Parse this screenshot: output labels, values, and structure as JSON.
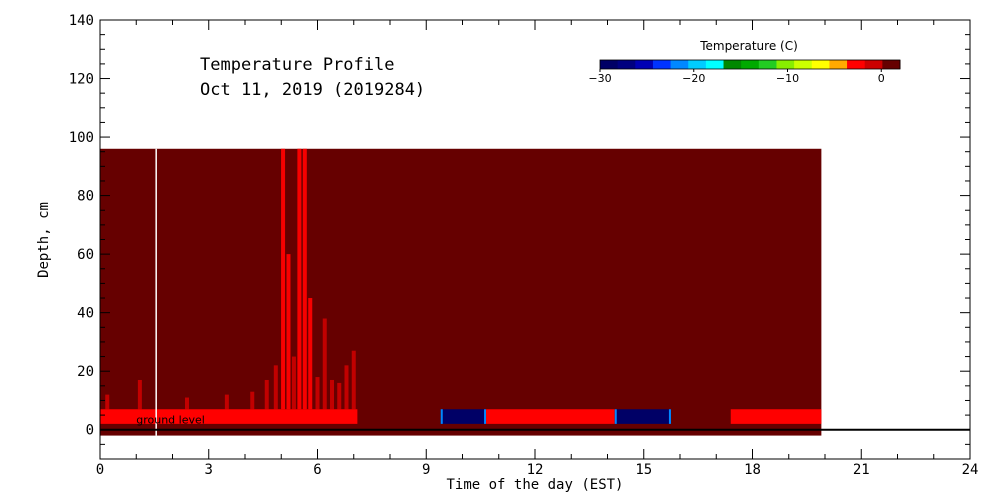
{
  "chart_data": {
    "type": "heatmap",
    "title_line1": "Temperature Profile",
    "title_line2": "Oct 11, 2019 (2019284)",
    "xlabel": "Time of the day (EST)",
    "ylabel": "Depth, cm",
    "xlim": [
      0,
      24
    ],
    "ylim": [
      -10,
      140
    ],
    "x_ticks": [
      0,
      3,
      6,
      9,
      12,
      15,
      18,
      21,
      24
    ],
    "x_tick_labels": [
      "0",
      "3",
      "6",
      "9",
      "12",
      "15",
      "18",
      "21",
      "24"
    ],
    "y_ticks": [
      0,
      20,
      40,
      60,
      80,
      100,
      120,
      140
    ],
    "y_tick_labels": [
      "0",
      "20",
      "40",
      "60",
      "80",
      "100",
      "120",
      "140"
    ],
    "ground_level_label": "ground level",
    "ground_level_depth": 0,
    "colorbar": {
      "title": "Temperature (C)",
      "range": [
        -30,
        2
      ],
      "tick_values": [
        -30,
        -20,
        -10,
        0
      ],
      "tick_labels": [
        "−30",
        "−20",
        "−10",
        "0"
      ],
      "colors": [
        "#000066",
        "#000080",
        "#0000b4",
        "#0033ff",
        "#0088ff",
        "#00ccff",
        "#00ffff",
        "#008800",
        "#00aa00",
        "#22cc22",
        "#88ee00",
        "#ccff00",
        "#ffff00",
        "#ffaa00",
        "#ff0000",
        "#cc0000",
        "#660000"
      ]
    },
    "colors": {
      "background_fill": "#660000",
      "warm_band": "#ff0000",
      "cold_band": "#000066",
      "cold_band_edge": "#0088ff",
      "marker_line": "#ffffff"
    },
    "data_extent": {
      "time_start": 0,
      "time_end": 19.9,
      "depth_top": 96,
      "depth_bottom": -2
    },
    "marker_time": 1.55,
    "surface_band": {
      "depth_bottom": 2,
      "depth_top": 7
    },
    "surface_segments": [
      {
        "start": 0,
        "end": 7.1,
        "state": "warm"
      },
      {
        "start": 9.4,
        "end": 10.65,
        "state": "cold"
      },
      {
        "start": 10.65,
        "end": 14.2,
        "state": "warm"
      },
      {
        "start": 14.2,
        "end": 15.75,
        "state": "cold"
      },
      {
        "start": 17.4,
        "end": 19.9,
        "state": "warm"
      }
    ],
    "spikes": [
      {
        "t": 0.2,
        "top": 12
      },
      {
        "t": 1.1,
        "top": 17
      },
      {
        "t": 2.4,
        "top": 11
      },
      {
        "t": 3.5,
        "top": 12
      },
      {
        "t": 4.2,
        "top": 13
      },
      {
        "t": 4.6,
        "top": 17
      },
      {
        "t": 4.85,
        "top": 22
      },
      {
        "t": 5.05,
        "top": 96
      },
      {
        "t": 5.2,
        "top": 60
      },
      {
        "t": 5.35,
        "top": 25
      },
      {
        "t": 5.5,
        "top": 96
      },
      {
        "t": 5.65,
        "top": 96
      },
      {
        "t": 5.8,
        "top": 45
      },
      {
        "t": 6.0,
        "top": 18
      },
      {
        "t": 6.2,
        "top": 38
      },
      {
        "t": 6.4,
        "top": 17
      },
      {
        "t": 6.6,
        "top": 16
      },
      {
        "t": 6.8,
        "top": 22
      },
      {
        "t": 7.0,
        "top": 27
      }
    ]
  }
}
